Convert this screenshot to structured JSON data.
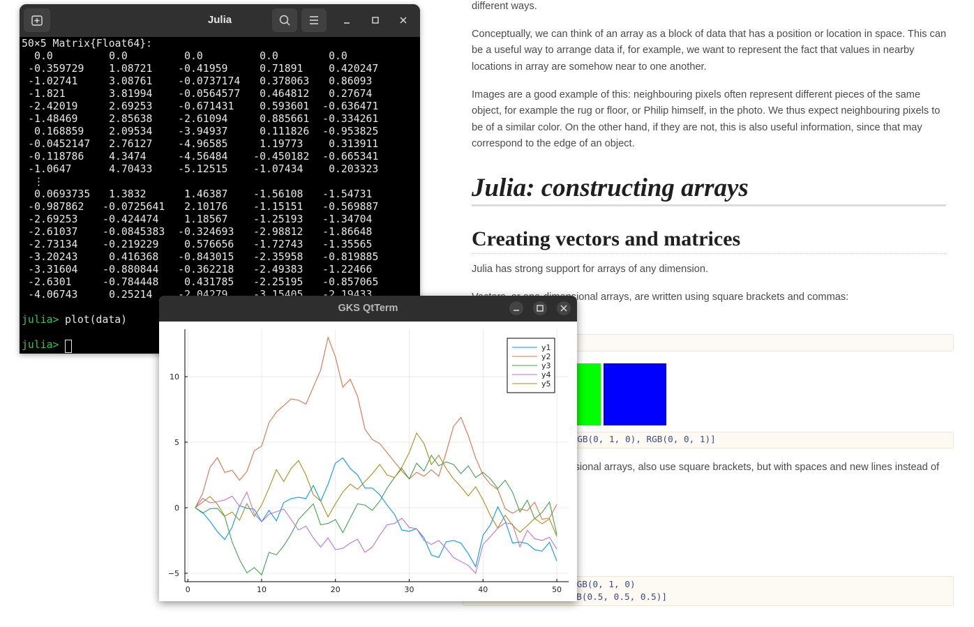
{
  "document": {
    "fragment_top": "different ways.",
    "paragraphs": [
      "Conceptually, we can think of an array as a block of data that has a position or location in space. This can be a useful way to arrange data if, for example, we want to represent the fact that values in nearby locations in array are somehow near to one another.",
      "Images are a good example of this: neighbouring pixels often represent different pieces of the same object, for example the rug or floor, or Philip himself, in the photo. We thus expect neighbouring pixels to be of a similar color. On the other hand, if they are not, this is also useful information, since that may correspond to the edge of an object."
    ],
    "heading_1": "Julia: constructing arrays",
    "heading_2": "Creating vectors and matrices",
    "text_1": "Julia has strong support for arrays of any dimension.",
    "text_2": "Vectors, or one-dimensional arrays, are written using square brackets and commas:",
    "code_1": "[RGB(1, 0, 0), RGB(0, 1, 0), RGB(0, 0, 1)]",
    "text_3": "Matrices, or two-dimensional arrays, also use square brackets, but with spaces and new lines instead of commas:",
    "code_2": [
      "[RGB(1, 0, 0) RGB(0, 1, 0)",
      " RGB(0, 0, 1) RGB(0.5, 0.5, 0.5)]"
    ]
  },
  "terminal": {
    "title": "Julia",
    "header": "50×5 Matrix{Float64}:",
    "head_rows": [
      [
        "0.0",
        "0.0",
        "0.0",
        "0.0",
        "0.0"
      ],
      [
        "-0.359729",
        "1.08721",
        "-0.41959",
        "0.71891",
        "0.420247"
      ],
      [
        "-1.02741",
        "3.08761",
        "-0.0737174",
        "0.378063",
        "0.86093"
      ],
      [
        "-1.821",
        "3.81994",
        "-0.0564577",
        "0.464812",
        "0.27674"
      ],
      [
        "-2.42019",
        "2.69253",
        "-0.671431",
        "0.593601",
        "-0.636471"
      ],
      [
        "-1.48469",
        "2.85638",
        "-2.61094",
        "0.885661",
        "-0.334261"
      ],
      [
        "0.168859",
        "2.09534",
        "-3.94937",
        "0.111826",
        "-0.953825"
      ],
      [
        "-0.0452147",
        "2.76127",
        "-4.96585",
        "1.19773",
        "0.313911"
      ],
      [
        "-0.118786",
        "4.3474",
        "-4.56484",
        "-0.450182",
        "-0.665341"
      ],
      [
        "-1.0647",
        "4.70433",
        "-5.12515",
        "-1.07434",
        "0.203323"
      ]
    ],
    "ellipsis": "⋮",
    "tail_rows": [
      [
        "0.0693735",
        "1.3832",
        "1.46387",
        "-1.56108",
        "-1.54731"
      ],
      [
        "-0.987862",
        "-0.0725641",
        "2.10176",
        "-1.15151",
        "-0.569887"
      ],
      [
        "-2.69253",
        "-0.424474",
        "1.18567",
        "-1.25193",
        "-1.34704"
      ],
      [
        "-2.61037",
        "-0.0845383",
        "-0.324693",
        "-2.98812",
        "-1.86648"
      ],
      [
        "-2.73134",
        "-0.219229",
        "0.576656",
        "-1.72743",
        "-1.35565"
      ],
      [
        "-3.20243",
        "0.416368",
        "-0.843015",
        "-2.35958",
        "-0.819885"
      ],
      [
        "-3.31604",
        "-0.880844",
        "-0.362218",
        "-2.49383",
        "-1.22466"
      ],
      [
        "-2.6301",
        "-0.784448",
        "0.431785",
        "-2.25195",
        "-0.857065"
      ],
      [
        "-4.06743",
        "0.25214",
        "-2.04279",
        "-3.15405",
        "-2.19433"
      ]
    ],
    "prompt": "julia>",
    "command": "plot(data)"
  },
  "plot_window": {
    "title": "GKS QtTerm"
  },
  "chart_data": {
    "type": "line",
    "x": [
      1,
      2,
      3,
      4,
      5,
      6,
      7,
      8,
      9,
      10,
      11,
      12,
      13,
      14,
      15,
      16,
      17,
      18,
      19,
      20,
      21,
      22,
      23,
      24,
      25,
      26,
      27,
      28,
      29,
      30,
      31,
      32,
      33,
      34,
      35,
      36,
      37,
      38,
      39,
      40,
      41,
      42,
      43,
      44,
      45,
      46,
      47,
      48,
      49,
      50
    ],
    "series": [
      {
        "name": "y1",
        "color": "#009af9",
        "values": [
          0,
          -0.359729,
          -1.02741,
          -1.821,
          -2.42019,
          -1.48469,
          0.168859,
          -0.0452147,
          -0.118786,
          -1.0647,
          -0.2,
          -1.0,
          0.4,
          0.7,
          0.8,
          0.7,
          1.7,
          0.5,
          1.8,
          3.4,
          3.8,
          3.0,
          2.5,
          1.5,
          1.5,
          1.0,
          0.2,
          -0.5,
          -1.7,
          -1.8,
          -1.6,
          -2.3,
          -3.6,
          -3.8,
          -2.6,
          -2.5,
          -2.7,
          -3.5,
          -4.5,
          -2.1,
          -1.3,
          0.0693735,
          -0.987862,
          -2.69253,
          -2.61037,
          -2.73134,
          -3.20243,
          -3.31604,
          -2.6301,
          -4.06743
        ]
      },
      {
        "name": "y2",
        "color": "#e26f46",
        "values": [
          0,
          1.08721,
          3.08761,
          3.81994,
          2.69253,
          2.85638,
          2.09534,
          2.76127,
          4.3474,
          4.70433,
          6.5,
          7.3,
          7.8,
          8.3,
          8.2,
          7.9,
          9.2,
          10.5,
          13.0,
          11.5,
          9.2,
          9.8,
          8.5,
          6.0,
          5.2,
          4.9,
          4.2,
          3.5,
          2.8,
          2.2,
          2.7,
          2.4,
          2.9,
          2.4,
          4.2,
          6.2,
          6.9,
          5.5,
          3.8,
          2.5,
          1.8,
          1.3832,
          -0.0725641,
          -0.424474,
          -0.0845383,
          -0.219229,
          0.416368,
          -0.880844,
          -0.784448,
          0.25214
        ]
      },
      {
        "name": "y3",
        "color": "#3ea44e",
        "values": [
          0,
          -0.41959,
          -0.0737174,
          -0.0564577,
          -0.671431,
          -2.61094,
          -3.94937,
          -4.96585,
          -4.56484,
          -5.12515,
          -3.4,
          -3.6,
          -2.9,
          -2.0,
          -0.9,
          -0.3,
          0.3,
          -1.3,
          -1.2,
          -0.9,
          -1.9,
          -0.8,
          0.3,
          0.2,
          -0.2,
          0.5,
          1.5,
          2.3,
          3.0,
          2.2,
          3.4,
          2.8,
          4.0,
          3.2,
          3.5,
          3.3,
          2.6,
          3.2,
          2.3,
          2.7,
          2.2,
          1.46387,
          2.10176,
          1.18567,
          -0.324693,
          0.576656,
          -0.843015,
          -0.362218,
          0.431785,
          -2.04279
        ]
      },
      {
        "name": "y4",
        "color": "#c271d2",
        "values": [
          0,
          0.71891,
          0.378063,
          0.464812,
          0.593601,
          0.885661,
          0.111826,
          1.19773,
          -0.450182,
          -1.07434,
          -0.5,
          -0.3,
          -0.1,
          -0.9,
          -1.7,
          -1.4,
          -2.3,
          -3.0,
          -2.3,
          -3.2,
          -3.1,
          -2.7,
          -2.4,
          -3.4,
          -3.0,
          -2.1,
          -1.3,
          -1.2,
          -0.8,
          -1.5,
          -1.6,
          -2.5,
          -2.8,
          -2.5,
          -3.1,
          -3.8,
          -4.1,
          -4.4,
          -5.0,
          -2.8,
          -2.2,
          -1.56108,
          -1.15151,
          -1.25193,
          -2.98812,
          -1.72743,
          -2.35958,
          -2.49383,
          -2.25195,
          -3.15405
        ]
      },
      {
        "name": "y5",
        "color": "#ac8e18",
        "values": [
          0,
          0.420247,
          0.86093,
          0.27674,
          -0.636471,
          -0.334261,
          -0.953825,
          0.313911,
          -0.665341,
          0.203323,
          1.5,
          2.9,
          2.0,
          3.0,
          3.6,
          2.5,
          1.0,
          0.5,
          -0.7,
          0.3,
          1.2,
          1.8,
          1.4,
          2.0,
          2.6,
          3.3,
          2.5,
          2.3,
          3.1,
          4.2,
          5.7,
          4.9,
          3.3,
          4.0,
          3.0,
          2.2,
          1.6,
          0.9,
          1.6,
          0.6,
          -0.6,
          -1.54731,
          -0.569887,
          -1.34704,
          -1.86648,
          -1.35565,
          -0.819885,
          -1.22466,
          -0.857065,
          -2.19433
        ]
      }
    ],
    "xlim": [
      -0.4,
      51.6
    ],
    "ylim": [
      -5.64,
      13.62
    ],
    "xticks": [
      0,
      10,
      20,
      30,
      40,
      50
    ],
    "yticks": [
      {
        "value": -5,
        "label": "−5"
      },
      0,
      5,
      10
    ],
    "grid": true,
    "legend": "top-right"
  }
}
